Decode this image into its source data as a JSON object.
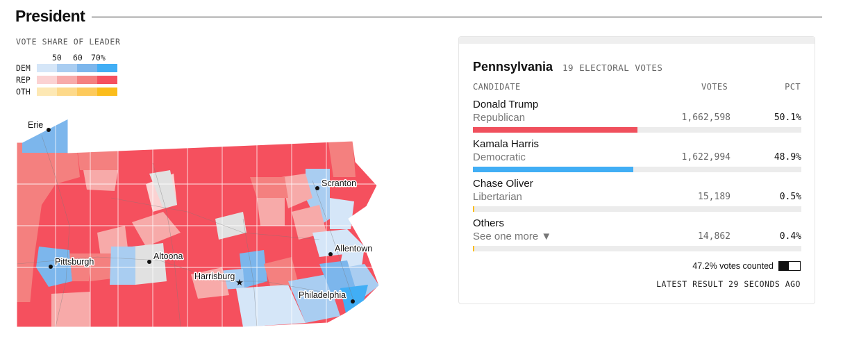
{
  "title": "President",
  "legend": {
    "title": "VOTE SHARE OF LEADER",
    "ticks": [
      "50",
      "60",
      "70%"
    ],
    "rows": [
      {
        "label": "DEM",
        "colors": [
          "#d5e6f8",
          "#a9cdf1",
          "#7cb6ec",
          "#41aef5"
        ]
      },
      {
        "label": "REP",
        "colors": [
          "#fbd2d2",
          "#f7aaa9",
          "#f4807f",
          "#f5505e"
        ]
      },
      {
        "label": "OTH",
        "colors": [
          "#fde8b4",
          "#fdd98a",
          "#fdca5c",
          "#fbbd1c"
        ]
      }
    ]
  },
  "map": {
    "cities": [
      {
        "name": "Erie",
        "marker": "dot"
      },
      {
        "name": "Scranton",
        "marker": "dot"
      },
      {
        "name": "Allentown",
        "marker": "dot"
      },
      {
        "name": "Pittsburgh",
        "marker": "dot"
      },
      {
        "name": "Altoona",
        "marker": "dot"
      },
      {
        "name": "Harrisburg",
        "marker": "star"
      },
      {
        "name": "Philadelphia",
        "marker": "dot"
      }
    ]
  },
  "card": {
    "state": "Pennsylvania",
    "electoral_votes": "19 ELECTORAL VOTES",
    "headers": {
      "candidate": "CANDIDATE",
      "votes": "VOTES",
      "pct": "PCT"
    },
    "candidates": [
      {
        "name": "Donald Trump",
        "party": "Republican",
        "votes": "1,662,598",
        "pct": "50.1%",
        "share": 0.501,
        "color": "#f0505d"
      },
      {
        "name": "Kamala Harris",
        "party": "Democratic",
        "votes": "1,622,994",
        "pct": "48.9%",
        "share": 0.489,
        "color": "#41aef5"
      },
      {
        "name": "Chase Oliver",
        "party": "Libertarian",
        "votes": "15,189",
        "pct": "0.5%",
        "share": 0.005,
        "color": "#fbbd1c"
      },
      {
        "name": "Others",
        "party": "See one more ▼",
        "votes": "14,862",
        "pct": "0.4%",
        "share": 0.004,
        "color": "#fbbd1c"
      }
    ],
    "counted_text": "47.2% votes counted",
    "counted_fraction": 0.472,
    "updated": "LATEST RESULT 29 SECONDS AGO"
  }
}
